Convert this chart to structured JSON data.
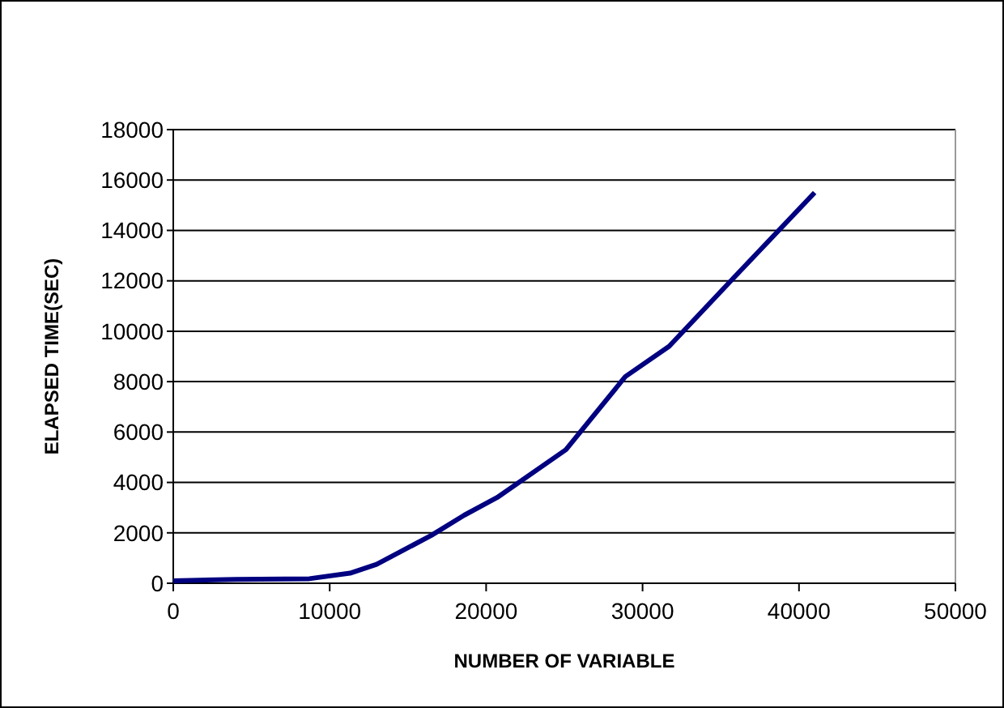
{
  "chart_data": {
    "type": "line",
    "xlabel": "NUMBER OF VARIABLE",
    "ylabel": "ELAPSED TIME(SEC)",
    "xlim": [
      0,
      50000
    ],
    "xticks": [
      0,
      10000,
      20000,
      30000,
      40000,
      50000
    ],
    "ylim": [
      0,
      18000
    ],
    "yticks": [
      0,
      2000,
      4000,
      6000,
      8000,
      10000,
      12000,
      14000,
      16000,
      18000
    ],
    "grid": "y",
    "marker": "none",
    "line_style": "solid",
    "series": [
      {
        "color": "#000080",
        "x": [
          0,
          4000,
          8700,
          11300,
          13000,
          16500,
          18600,
          20700,
          25100,
          28900,
          31700,
          35800,
          41000
        ],
        "values": [
          100,
          150,
          180,
          400,
          750,
          1900,
          2700,
          3400,
          5300,
          8200,
          9400,
          12100,
          15500
        ]
      }
    ]
  }
}
